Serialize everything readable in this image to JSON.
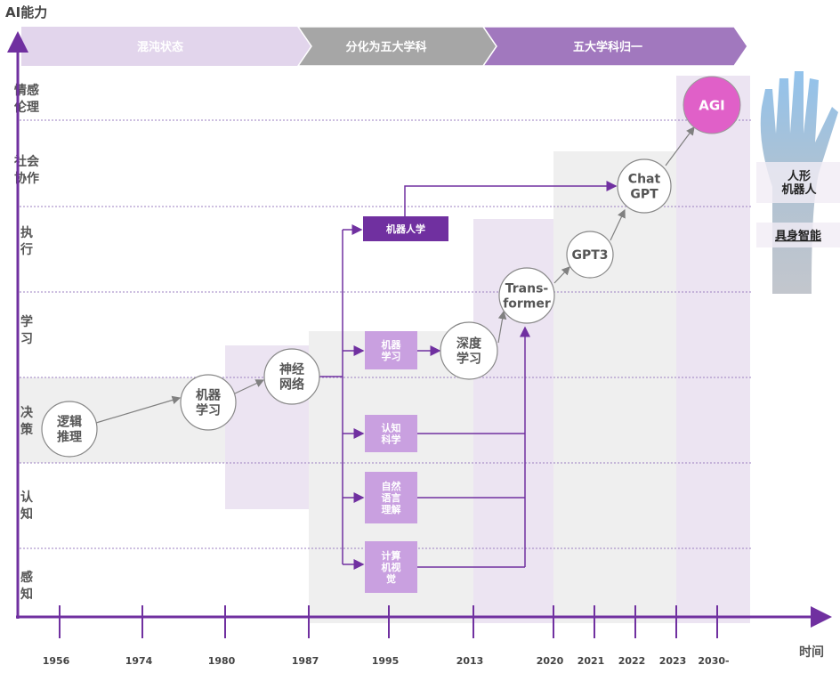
{
  "axis": {
    "y_label": "AI能力",
    "x_label": "时间"
  },
  "phases": [
    {
      "label": "混沌状态",
      "color": "#e2d5ec"
    },
    {
      "label": "分化为五大学科",
      "color": "#a6a6a6"
    },
    {
      "label": "五大学科归一",
      "color": "#a178be"
    }
  ],
  "rows": [
    {
      "line1": "情感",
      "line2": "伦理"
    },
    {
      "line1": "社会",
      "line2": "协作"
    },
    {
      "line1": "执",
      "line2": "行"
    },
    {
      "line1": "学",
      "line2": "习"
    },
    {
      "line1": "决",
      "line2": "策"
    },
    {
      "line1": "认",
      "line2": "知"
    },
    {
      "line1": "感",
      "line2": "知"
    }
  ],
  "years": [
    "1956",
    "1974",
    "1980",
    "1987",
    "1995",
    "2013",
    "2020",
    "2021",
    "2022",
    "2023",
    "2030-"
  ],
  "nodes": {
    "logic": [
      "逻辑",
      "推理"
    ],
    "ml": [
      "机器",
      "学习"
    ],
    "nn": [
      "神经",
      "网络"
    ],
    "dl": [
      "深度",
      "学习"
    ],
    "transformer": [
      "Trans-",
      "former"
    ],
    "gpt3": [
      "GPT3"
    ],
    "chatgpt": [
      "Chat",
      "GPT"
    ],
    "agi": [
      "AGI"
    ]
  },
  "boxes": {
    "robotics": [
      "机器人学"
    ],
    "ml": [
      "机器",
      "学习"
    ],
    "cog": [
      "认知",
      "科学"
    ],
    "nlp": [
      "自然",
      "语言",
      "理解"
    ],
    "cv": [
      "计算",
      "机视",
      "觉"
    ]
  },
  "side": {
    "humanoid": [
      "人形",
      "机器人"
    ],
    "embodied": "具身智能"
  },
  "colors": {
    "accent": "#7030a0",
    "agi": "#e060c8",
    "box": "#c9a0e0"
  }
}
